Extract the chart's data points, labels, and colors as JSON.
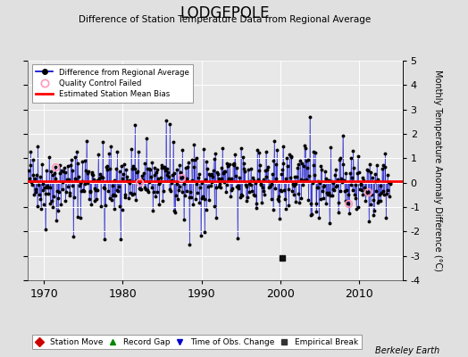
{
  "title": "LODGEPOLE",
  "subtitle": "Difference of Station Temperature Data from Regional Average",
  "ylabel": "Monthly Temperature Anomaly Difference (°C)",
  "xlabel_years": [
    1970,
    1980,
    1990,
    2000,
    2010
  ],
  "xlim": [
    1968.0,
    2015.5
  ],
  "ylim": [
    -4,
    5
  ],
  "yticks": [
    -4,
    -3,
    -2,
    -1,
    0,
    1,
    2,
    3,
    4,
    5
  ],
  "bias_level": 0.05,
  "background_color": "#e0e0e0",
  "plot_bg_color": "#e8e8e8",
  "line_color": "#0000cc",
  "bias_color": "#ff0000",
  "dot_color": "#000000",
  "qc_color": "#ff99bb",
  "seed": 42,
  "n_months": 552,
  "start_year": 1968.08,
  "legend1_items": [
    "Difference from Regional Average",
    "Quality Control Failed",
    "Estimated Station Mean Bias"
  ],
  "legend2_items": [
    "Station Move",
    "Record Gap",
    "Time of Obs. Change",
    "Empirical Break"
  ],
  "legend2_colors": [
    "#cc0000",
    "#008800",
    "#0000cc",
    "#333333"
  ],
  "legend2_markers": [
    "D",
    "^",
    "v",
    "s"
  ],
  "empirical_break_year": 2000.2,
  "qc_failed_indices": [
    40,
    168,
    232,
    487,
    517
  ],
  "bias_segments": [
    {
      "start": 1968.0,
      "end": 2015.5,
      "value": 0.05
    }
  ],
  "fig_width": 5.24,
  "fig_height": 4.0,
  "dpi": 100
}
